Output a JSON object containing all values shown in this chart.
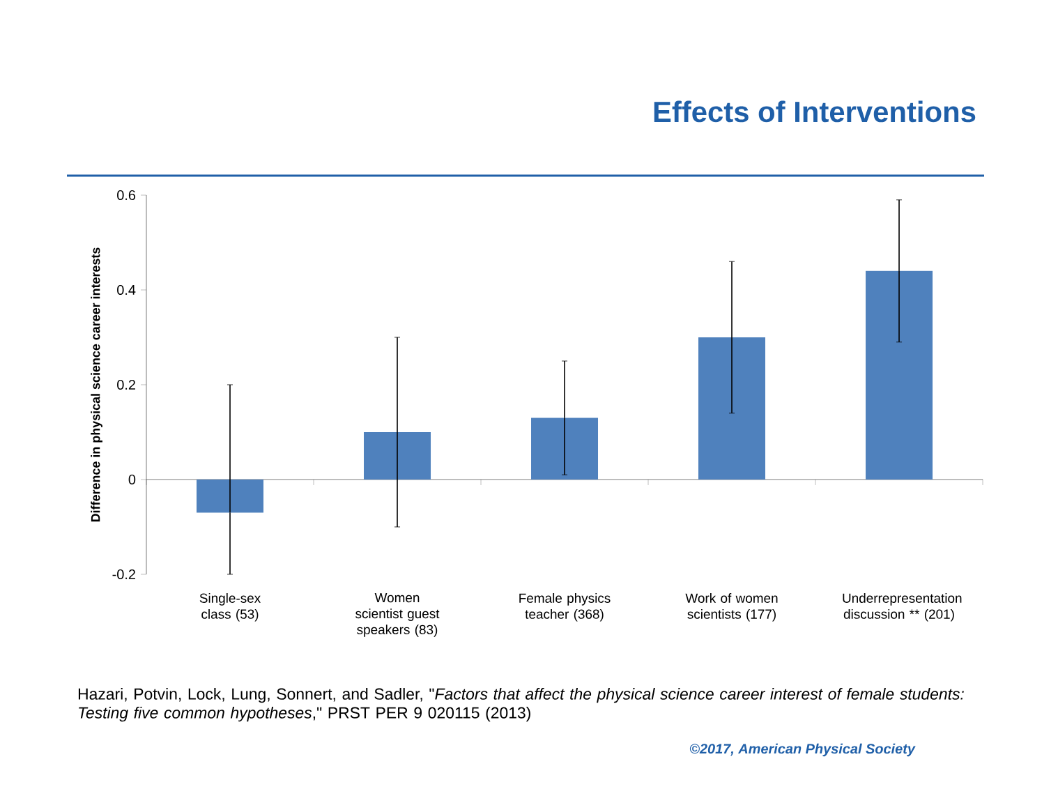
{
  "chart_data": {
    "type": "bar",
    "title": "Effects of Interventions",
    "ylabel": "Difference in physical science career interests",
    "categories": [
      "Single-sex class (53)",
      "Women scientist guest speakers (83)",
      "Female physics teacher (368)",
      "Work of women scientists (177)",
      "Underrepresentation discussion ** (201)"
    ],
    "values": [
      -0.07,
      0.1,
      0.13,
      0.3,
      0.44
    ],
    "errors": [
      [
        -0.2,
        0.2
      ],
      [
        -0.1,
        0.3
      ],
      [
        0.01,
        0.25
      ],
      [
        0.14,
        0.46
      ],
      [
        0.29,
        0.59
      ]
    ],
    "color": "#4f81bd",
    "ylim": [
      -0.2,
      0.6
    ],
    "yticks": [
      -0.2,
      0,
      0.2,
      0.4,
      0.6
    ],
    "annotations": [
      "Hazari, Potvin, Lock, Lung, Sonnert, and Sadler, \"*Factors that affect the physical science career interest of female students: Testing five common hypotheses*,\" PRST PER 9 020115 (2013)",
      "©2017, American Physical Society"
    ]
  }
}
